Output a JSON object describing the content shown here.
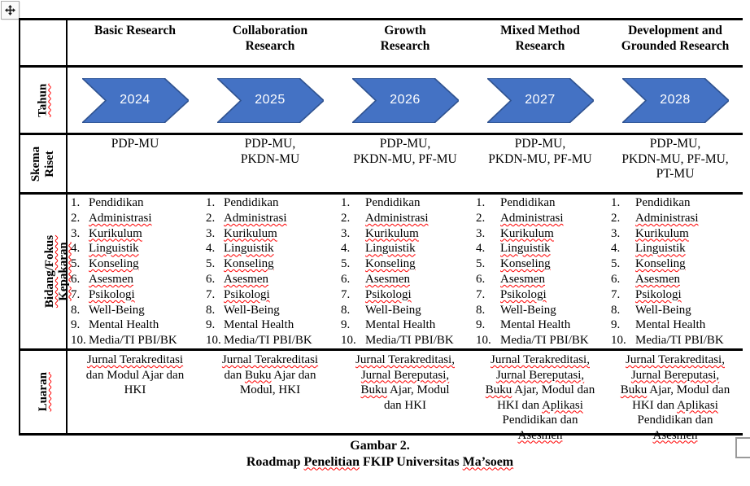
{
  "icons": {
    "move_icon": "four-way-move-arrow",
    "resize_icon": "table-resize-square"
  },
  "colors": {
    "arrow_fill": "#4472C4",
    "arrow_stroke": "#2F528F",
    "arrow_text": "#ffffff",
    "squiggle": "#ff0000",
    "border": "#000000"
  },
  "table": {
    "column_headers": [
      [
        "Basic Research"
      ],
      [
        "Collaboration",
        "Research"
      ],
      [
        "Growth",
        "Research"
      ],
      [
        "Mixed Method",
        "Research"
      ],
      [
        "Development and",
        "Grounded Research"
      ]
    ],
    "row_labels": {
      "tahun": [
        [
          {
            "t": "Tahun",
            "sq": true
          }
        ]
      ],
      "skema": [
        [
          {
            "t": "Skema",
            "sq": false
          }
        ],
        [
          {
            "t": "Riset",
            "sq": false
          }
        ]
      ],
      "fokus": [
        [
          {
            "t": "Bidang/Fokus",
            "sq": true
          }
        ],
        [
          {
            "t": "Kepakaran",
            "sq": true
          }
        ]
      ],
      "luaran": [
        [
          {
            "t": "Luaran",
            "sq": true
          }
        ]
      ]
    },
    "years": [
      "2024",
      "2025",
      "2026",
      "2027",
      "2028"
    ],
    "skema_riset": [
      [
        "PDP-MU"
      ],
      [
        "PDP-MU,",
        "PKDN-MU"
      ],
      [
        "PDP-MU,",
        "PKDN-MU, PF-MU"
      ],
      [
        "PDP-MU,",
        "PKDN-MU, PF-MU"
      ],
      [
        "PDP-MU,",
        "PKDN-MU, PF-MU,",
        "PT-MU"
      ]
    ],
    "fokus_items": [
      {
        "num": "1.",
        "text": "Pendidikan",
        "sq": false
      },
      {
        "num": "2.",
        "text": "Administrasi",
        "sq": true
      },
      {
        "num": "3.",
        "text": "Kurikulum",
        "sq": true
      },
      {
        "num": "4.",
        "text": "Linguistik",
        "sq": true
      },
      {
        "num": "5.",
        "text": "Konseling",
        "sq": true
      },
      {
        "num": "6.",
        "text": "Asesmen",
        "sq": true
      },
      {
        "num": "7.",
        "text": "Psikologi",
        "sq": true
      },
      {
        "num": "8.",
        "text": "Well-Being",
        "sq": false
      },
      {
        "num": "9.",
        "text": "Mental Health",
        "sq": false
      },
      {
        "num": "10.",
        "text": "Media/TI PBI/BK",
        "sq": false
      }
    ],
    "luaran": [
      [
        [
          {
            "t": "Jurnal Terakreditasi",
            "sq": true
          }
        ],
        [
          {
            "t": "dan Modul Ajar dan",
            "sq": false
          }
        ],
        [
          {
            "t": "HKI",
            "sq": false
          }
        ]
      ],
      [
        [
          {
            "t": "Jurnal Terakreditasi",
            "sq": true
          }
        ],
        [
          {
            "t": "dan ",
            "sq": false
          },
          {
            "t": "Buku",
            "sq": true
          },
          {
            "t": " Ajar dan",
            "sq": false
          }
        ],
        [
          {
            "t": "Modul, HKI",
            "sq": false
          }
        ]
      ],
      [
        [
          {
            "t": "Jurnal Terakreditasi,",
            "sq": true
          }
        ],
        [
          {
            "t": "Jurnal Bereputasi,",
            "sq": true
          }
        ],
        [
          {
            "t": "Buku",
            "sq": true
          },
          {
            "t": " Ajar, Modul",
            "sq": false
          }
        ],
        [
          {
            "t": "dan HKI",
            "sq": false
          }
        ]
      ],
      [
        [
          {
            "t": "Jurnal Terakreditasi,",
            "sq": true
          }
        ],
        [
          {
            "t": "Jurnal Bereputasi,",
            "sq": true
          }
        ],
        [
          {
            "t": "Buku",
            "sq": true
          },
          {
            "t": " Ajar, Modul dan",
            "sq": false
          }
        ],
        [
          {
            "t": "HKI dan ",
            "sq": false
          },
          {
            "t": "Aplikasi",
            "sq": true
          }
        ],
        [
          {
            "t": "Pendidikan dan",
            "sq": false
          }
        ],
        [
          {
            "t": "Asesmen",
            "sq": true
          }
        ]
      ],
      [
        [
          {
            "t": "Jurnal Terakreditasi,",
            "sq": true
          }
        ],
        [
          {
            "t": "Jurnal Bereputasi,",
            "sq": true
          }
        ],
        [
          {
            "t": "Buku",
            "sq": true
          },
          {
            "t": " Ajar, Modul dan",
            "sq": false
          }
        ],
        [
          {
            "t": "HKI dan ",
            "sq": false
          },
          {
            "t": "Aplikasi",
            "sq": true
          }
        ],
        [
          {
            "t": "Pendidikan dan",
            "sq": false
          }
        ],
        [
          {
            "t": "Asesmen",
            "sq": true
          }
        ]
      ]
    ]
  },
  "caption": {
    "title": "Gambar 2.",
    "text_lines": [
      [
        {
          "t": "Roadmap ",
          "sq": false
        },
        {
          "t": "Penelitian",
          "sq": true
        },
        {
          "t": " FKIP Universitas ",
          "sq": false
        },
        {
          "t": "Ma’soem",
          "sq": true
        }
      ]
    ]
  }
}
